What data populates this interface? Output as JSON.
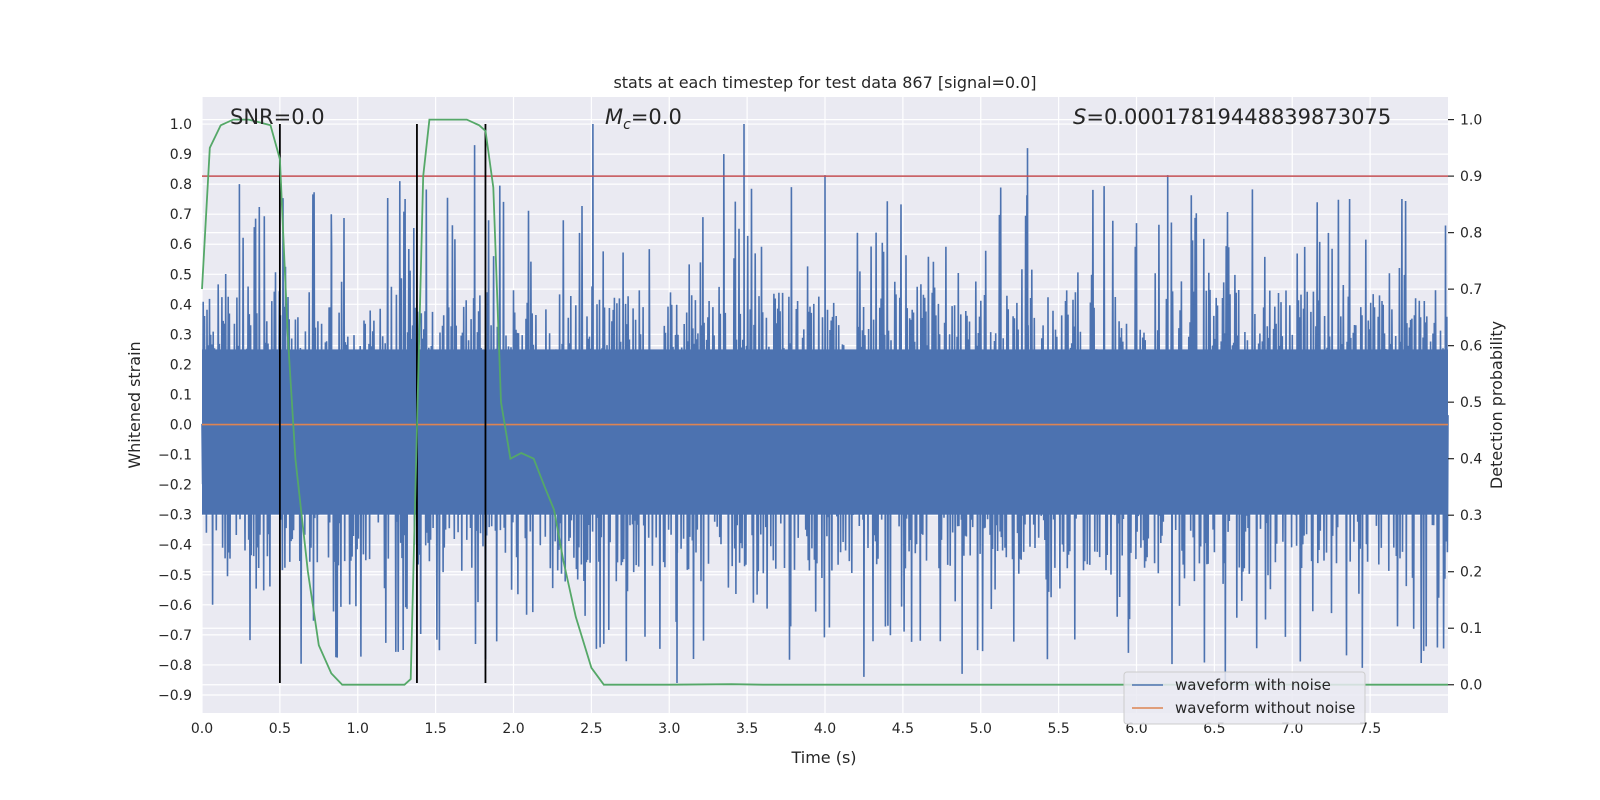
{
  "chart_data": {
    "type": "line",
    "title": "stats at each timestep for test data 867 [signal=0.0]",
    "xlabel": "Time (s)",
    "ylabel": "Whitened strain",
    "y2label": "Detection probability",
    "xlim": [
      0.0,
      8.0
    ],
    "ylim": [
      -0.96,
      1.09
    ],
    "y2lim": [
      -0.05,
      1.04
    ],
    "xticks": [
      "0.0",
      "0.5",
      "1.0",
      "1.5",
      "2.0",
      "2.5",
      "3.0",
      "3.5",
      "4.0",
      "4.5",
      "5.0",
      "5.5",
      "6.0",
      "6.5",
      "7.0",
      "7.5"
    ],
    "yticks": [
      "-0.9",
      "-0.8",
      "-0.7",
      "-0.6",
      "-0.5",
      "-0.4",
      "-0.3",
      "-0.2",
      "-0.1",
      "0.0",
      "0.1",
      "0.2",
      "0.3",
      "0.4",
      "0.5",
      "0.6",
      "0.7",
      "0.8",
      "0.9",
      "1.0"
    ],
    "y2ticks": [
      "0.0",
      "0.1",
      "0.2",
      "0.3",
      "0.4",
      "0.5",
      "0.6",
      "0.7",
      "0.8",
      "0.9",
      "1.0"
    ],
    "annotations": {
      "snr": "SNR=0.0",
      "mc_symbol": "M",
      "mc_sub": "c",
      "mc_value": "=0.0",
      "s_symbol": "S",
      "s_value": "=0.00017819448839873075"
    },
    "threshold": {
      "axis": "right",
      "value": 0.9,
      "color": "#c44e52"
    },
    "event_lines": {
      "x": [
        0.5,
        1.38,
        1.82
      ],
      "ymin": -0.86,
      "ymax": 1.0,
      "color": "#000000"
    },
    "series": [
      {
        "name": "waveform with noise",
        "axis": "left",
        "color": "#4c72b0",
        "noise_envelope": {
          "x_start": 0.0,
          "x_end": 8.0,
          "core_low": -0.5,
          "core_high": 0.45,
          "peak_max": 1.0,
          "trough_min": -0.86
        },
        "peaks": [
          {
            "x": 0.24,
            "y": 0.8
          },
          {
            "x": 0.83,
            "y": 0.7
          },
          {
            "x": 1.27,
            "y": 0.81
          },
          {
            "x": 1.75,
            "y": 0.93
          },
          {
            "x": 2.51,
            "y": 1.0
          },
          {
            "x": 3.35,
            "y": 0.9
          },
          {
            "x": 3.48,
            "y": 1.0
          },
          {
            "x": 4.0,
            "y": 0.83
          },
          {
            "x": 5.3,
            "y": 0.92
          },
          {
            "x": 6.2,
            "y": 0.83
          }
        ],
        "troughs": [
          {
            "x": 3.05,
            "y": -0.86
          },
          {
            "x": 4.25,
            "y": -0.84
          },
          {
            "x": 4.88,
            "y": -0.83
          },
          {
            "x": 6.57,
            "y": -0.86
          },
          {
            "x": 7.45,
            "y": -0.81
          }
        ]
      },
      {
        "name": "waveform without noise",
        "axis": "left",
        "color": "#dd8452",
        "x": [
          0.0,
          8.0
        ],
        "y": [
          0.0,
          0.0
        ]
      },
      {
        "name": "detection probability",
        "axis": "right",
        "color": "#55a868",
        "x": [
          0.0,
          0.05,
          0.12,
          0.2,
          0.3,
          0.44,
          0.5,
          0.55,
          0.6,
          0.68,
          0.75,
          0.83,
          0.9,
          1.0,
          1.1,
          1.2,
          1.3,
          1.34,
          1.38,
          1.42,
          1.46,
          1.5,
          1.6,
          1.7,
          1.78,
          1.82,
          1.87,
          1.92,
          1.98,
          2.05,
          2.13,
          2.2,
          2.26,
          2.32,
          2.4,
          2.5,
          2.58,
          2.65,
          3.0,
          3.4,
          3.6,
          4.0,
          5.0,
          6.0,
          7.0,
          8.0
        ],
        "y": [
          0.7,
          0.95,
          0.99,
          1.0,
          1.0,
          0.99,
          0.93,
          0.62,
          0.4,
          0.2,
          0.07,
          0.02,
          0.0,
          0.0,
          0.0,
          0.0,
          0.0,
          0.01,
          0.45,
          0.9,
          1.0,
          1.0,
          1.0,
          1.0,
          0.99,
          0.98,
          0.88,
          0.5,
          0.4,
          0.41,
          0.4,
          0.35,
          0.31,
          0.22,
          0.12,
          0.03,
          0.0,
          0.0,
          0.0,
          0.001,
          0.0,
          0.0,
          0.0,
          0.0,
          0.0,
          0.0
        ]
      }
    ],
    "legend": {
      "placement": "lower-right",
      "entries": [
        {
          "label": "waveform with noise",
          "color": "#4c72b0"
        },
        {
          "label": "waveform without noise",
          "color": "#dd8452"
        }
      ]
    }
  }
}
